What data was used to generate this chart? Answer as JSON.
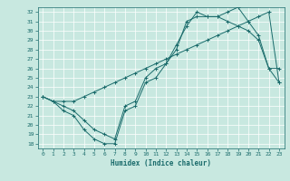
{
  "xlabel": "Humidex (Indice chaleur)",
  "xlim": [
    -0.5,
    23.5
  ],
  "ylim": [
    17.5,
    32.5
  ],
  "yticks": [
    18,
    19,
    20,
    21,
    22,
    23,
    24,
    25,
    26,
    27,
    28,
    29,
    30,
    31,
    32
  ],
  "xticks": [
    0,
    1,
    2,
    3,
    4,
    5,
    6,
    7,
    8,
    9,
    10,
    11,
    12,
    13,
    14,
    15,
    16,
    17,
    18,
    19,
    20,
    21,
    22,
    23
  ],
  "bg_color": "#c8e8e0",
  "line_color": "#1a6b6b",
  "grid_color": "#ffffff",
  "line1_x": [
    0,
    1,
    2,
    3,
    4,
    5,
    6,
    7,
    8,
    9,
    10,
    11,
    12,
    13,
    14,
    15,
    16,
    17,
    18,
    19,
    20,
    21,
    22,
    23
  ],
  "line1_y": [
    23.0,
    22.5,
    21.5,
    21.0,
    19.5,
    18.5,
    18.0,
    18.0,
    21.5,
    22.0,
    24.5,
    25.0,
    26.5,
    28.5,
    30.5,
    32.0,
    31.5,
    31.5,
    31.0,
    30.5,
    30.0,
    29.0,
    26.0,
    24.5
  ],
  "line2_x": [
    0,
    1,
    2,
    3,
    4,
    5,
    6,
    7,
    8,
    9,
    10,
    11,
    12,
    13,
    14,
    15,
    16,
    17,
    18,
    19,
    20,
    21,
    22,
    23
  ],
  "line2_y": [
    23.0,
    22.5,
    22.5,
    22.5,
    23.0,
    23.5,
    24.0,
    24.5,
    25.0,
    25.5,
    26.0,
    26.5,
    27.0,
    27.5,
    28.0,
    28.5,
    29.0,
    29.5,
    30.0,
    30.5,
    31.0,
    31.5,
    32.0,
    24.5
  ],
  "line3_x": [
    0,
    2,
    3,
    4,
    5,
    6,
    7,
    8,
    9,
    10,
    11,
    12,
    13,
    14,
    15,
    16,
    17,
    18,
    19,
    20,
    21,
    22,
    23
  ],
  "line3_y": [
    23.0,
    22.0,
    21.5,
    20.5,
    19.5,
    19.0,
    18.5,
    22.0,
    22.5,
    25.0,
    26.0,
    26.5,
    28.0,
    31.0,
    31.5,
    31.5,
    31.5,
    32.0,
    32.5,
    31.0,
    29.5,
    26.0,
    26.0
  ]
}
